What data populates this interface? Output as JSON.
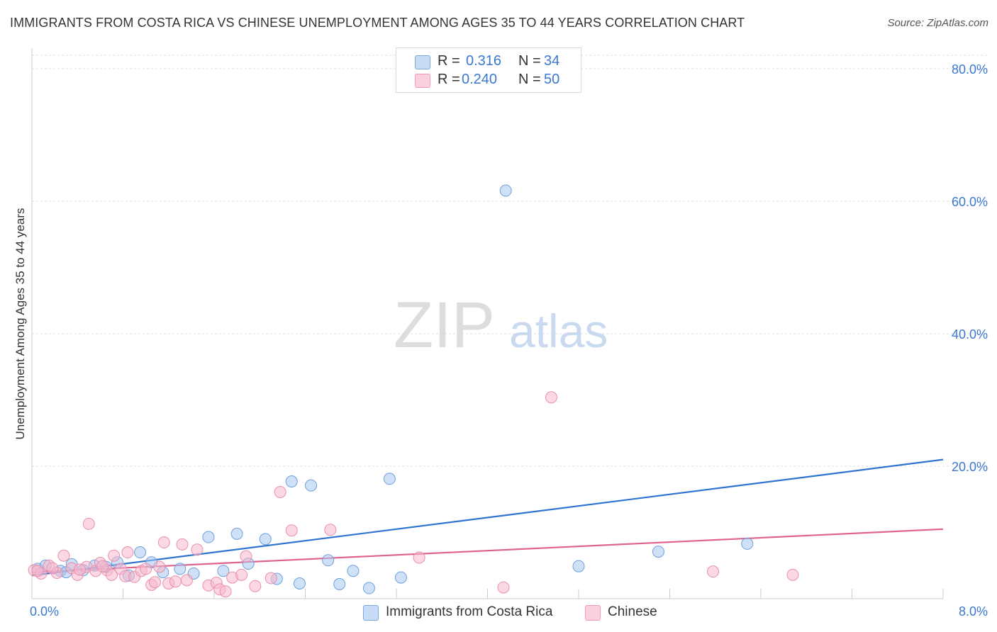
{
  "title": "IMMIGRANTS FROM COSTA RICA VS CHINESE UNEMPLOYMENT AMONG AGES 35 TO 44 YEARS CORRELATION CHART",
  "source": "Source: ZipAtlas.com",
  "watermark": {
    "zip": "ZIP",
    "atlas": "atlas"
  },
  "stats": [
    {
      "r_label": "R =",
      "r_value": "0.316",
      "n_label": "N =",
      "n_value": "34",
      "color": "#a8c8f0"
    },
    {
      "r_label": "R =",
      "r_value": "0.240",
      "n_label": "N =",
      "n_value": "50",
      "color": "#f8b8cc"
    }
  ],
  "legend": [
    {
      "label": "Immigrants from Costa Rica",
      "color": "#a8c8f0"
    },
    {
      "label": "Chinese",
      "color": "#f8b8cc"
    }
  ],
  "chart_data": {
    "type": "scatter",
    "title": "IMMIGRANTS FROM COSTA RICA VS CHINESE UNEMPLOYMENT AMONG AGES 35 TO 44 YEARS CORRELATION CHART",
    "xlabel": "",
    "ylabel": "Unemployment Among Ages 35 to 44 years",
    "xlim": [
      0,
      8
    ],
    "ylim": [
      0,
      80
    ],
    "x_tick_labels": [
      {
        "value": 0,
        "label": "0.0%"
      },
      {
        "value": 8,
        "label": "8.0%"
      }
    ],
    "y_tick_labels": [
      {
        "value": 20,
        "label": "20.0%"
      },
      {
        "value": 40,
        "label": "40.0%"
      },
      {
        "value": 60,
        "label": "60.0%"
      },
      {
        "value": 80,
        "label": "80.0%"
      }
    ],
    "grid": true,
    "series": [
      {
        "name": "Immigrants from Costa Rica",
        "color": "#a8c8f0",
        "stroke": "#6f9fdc",
        "line_color": "#2f74d0",
        "trend": {
          "x": [
            0,
            8
          ],
          "y": [
            3.5,
            21.0
          ]
        },
        "points": [
          [
            0.05,
            4.5
          ],
          [
            0.12,
            5.0
          ],
          [
            0.25,
            4.2
          ],
          [
            0.35,
            5.2
          ],
          [
            0.45,
            4.3
          ],
          [
            0.55,
            5.0
          ],
          [
            0.65,
            4.8
          ],
          [
            0.75,
            5.5
          ],
          [
            0.85,
            3.5
          ],
          [
            0.95,
            7.0
          ],
          [
            1.05,
            5.5
          ],
          [
            1.15,
            4.0
          ],
          [
            1.3,
            4.5
          ],
          [
            1.42,
            3.8
          ],
          [
            1.55,
            9.3
          ],
          [
            1.68,
            4.2
          ],
          [
            1.8,
            9.8
          ],
          [
            1.9,
            5.3
          ],
          [
            2.05,
            9.0
          ],
          [
            2.15,
            3.0
          ],
          [
            2.28,
            17.7
          ],
          [
            2.35,
            2.3
          ],
          [
            2.45,
            17.1
          ],
          [
            2.6,
            5.8
          ],
          [
            2.7,
            2.2
          ],
          [
            2.82,
            4.2
          ],
          [
            2.96,
            1.6
          ],
          [
            3.14,
            18.1
          ],
          [
            3.24,
            3.2
          ],
          [
            4.16,
            61.6
          ],
          [
            4.8,
            4.9
          ],
          [
            5.5,
            7.1
          ],
          [
            6.28,
            8.3
          ],
          [
            0.3,
            4.0
          ]
        ]
      },
      {
        "name": "Chinese",
        "color": "#f8b8cc",
        "stroke": "#e88fae",
        "line_color": "#e0628f",
        "trend": {
          "x": [
            0,
            8
          ],
          "y": [
            4.0,
            10.5
          ]
        },
        "points": [
          [
            0.02,
            4.3
          ],
          [
            0.08,
            3.8
          ],
          [
            0.15,
            5.0
          ],
          [
            0.22,
            3.9
          ],
          [
            0.28,
            6.5
          ],
          [
            0.35,
            4.6
          ],
          [
            0.4,
            3.6
          ],
          [
            0.48,
            4.8
          ],
          [
            0.5,
            11.3
          ],
          [
            0.56,
            4.2
          ],
          [
            0.6,
            5.4
          ],
          [
            0.66,
            4.3
          ],
          [
            0.7,
            3.6
          ],
          [
            0.72,
            6.5
          ],
          [
            0.78,
            4.5
          ],
          [
            0.82,
            3.4
          ],
          [
            0.84,
            7.0
          ],
          [
            0.9,
            3.3
          ],
          [
            0.96,
            4.2
          ],
          [
            1.0,
            4.5
          ],
          [
            1.05,
            2.1
          ],
          [
            1.08,
            2.5
          ],
          [
            1.12,
            4.8
          ],
          [
            1.16,
            8.5
          ],
          [
            1.2,
            2.3
          ],
          [
            1.26,
            2.6
          ],
          [
            1.32,
            8.2
          ],
          [
            1.36,
            2.8
          ],
          [
            1.45,
            7.4
          ],
          [
            1.55,
            2.0
          ],
          [
            1.62,
            2.4
          ],
          [
            1.65,
            1.4
          ],
          [
            1.7,
            1.1
          ],
          [
            1.76,
            3.2
          ],
          [
            1.84,
            3.6
          ],
          [
            1.88,
            6.4
          ],
          [
            1.96,
            1.9
          ],
          [
            2.1,
            3.1
          ],
          [
            2.18,
            16.1
          ],
          [
            2.28,
            10.3
          ],
          [
            2.62,
            10.4
          ],
          [
            3.4,
            6.2
          ],
          [
            4.14,
            1.7
          ],
          [
            4.56,
            30.4
          ],
          [
            5.98,
            4.1
          ],
          [
            6.68,
            3.6
          ],
          [
            0.05,
            4.2
          ],
          [
            0.18,
            4.6
          ],
          [
            0.42,
            4.4
          ],
          [
            0.62,
            4.9
          ]
        ]
      }
    ]
  }
}
